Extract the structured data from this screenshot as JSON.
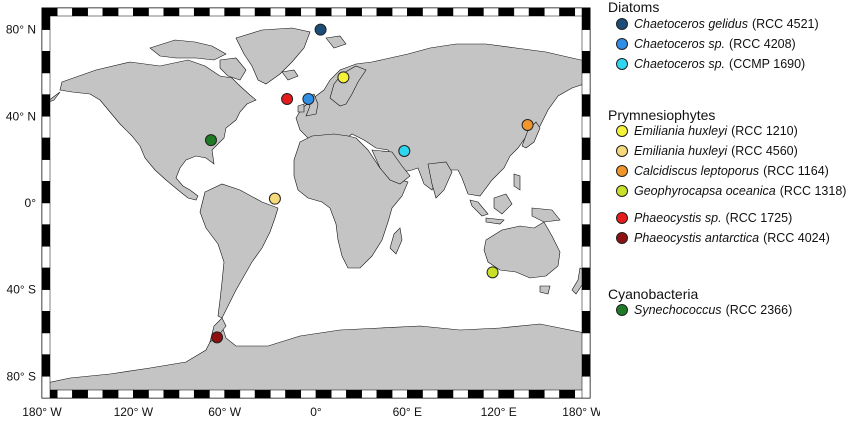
{
  "map": {
    "lon_min": -180,
    "lon_max": 180,
    "lat_min": -90,
    "lat_max": 90,
    "x_ticks": [
      {
        "lon": -180,
        "label": "180° W"
      },
      {
        "lon": -120,
        "label": "120° W"
      },
      {
        "lon": -60,
        "label": "60° W"
      },
      {
        "lon": 0,
        "label": "0°"
      },
      {
        "lon": 60,
        "label": "60° E"
      },
      {
        "lon": 120,
        "label": "120° E"
      },
      {
        "lon": 180,
        "label": "180° W"
      }
    ],
    "y_ticks": [
      {
        "lat": 80,
        "label": "80° N"
      },
      {
        "lat": 40,
        "label": "40° N"
      },
      {
        "lat": 0,
        "label": "0°"
      },
      {
        "lat": -40,
        "label": "40° S"
      },
      {
        "lat": -80,
        "label": "80° S"
      }
    ],
    "ocean_color": "#ffffff",
    "land_color": "#c4c4c4",
    "coast_color": "#111111"
  },
  "legend": {
    "groups": [
      {
        "title": "Diatoms",
        "items": [
          {
            "species": "Chaetoceros gelidus",
            "strain": "(RCC 4521)",
            "color": "#1b4d78"
          },
          {
            "species": "Chaetoceros sp.",
            "strain": "(RCC 4208)",
            "color": "#2f8ee6"
          },
          {
            "species": "Chaetoceros sp.",
            "strain": "(CCMP 1690)",
            "color": "#2fd6ef"
          }
        ]
      },
      {
        "title": "Prymnesiophytes",
        "items": [
          {
            "species": "Emiliania huxleyi",
            "strain": "(RCC 1210)",
            "color": "#f5f23a"
          },
          {
            "species": "Emiliania huxleyi",
            "strain": "(RCC 4560)",
            "color": "#f5d97a"
          },
          {
            "species": "Calcidiscus leptoporus",
            "strain": "(RCC 1164)",
            "color": "#f0962a"
          },
          {
            "species": "Geophyrocapsa oceanica",
            "strain": "(RCC 1318)",
            "color": "#c8e02a"
          },
          {
            "species": "Phaeocystis sp.",
            "strain": "(RCC 1725)",
            "color": "#e61c1c"
          },
          {
            "species": "Phaeocystis antarctica",
            "strain": "(RCC 4024)",
            "color": "#8e1010"
          }
        ]
      },
      {
        "title": "Cyanobacteria",
        "items": [
          {
            "species": "Synechococcus",
            "strain": "(RCC 2366)",
            "color": "#1e7a25"
          }
        ]
      }
    ]
  },
  "sites": [
    {
      "name": "Chaetoceros gelidus (RCC 4521)",
      "lon": 3,
      "lat": 80,
      "color": "#1b4d78"
    },
    {
      "name": "Chaetoceros sp. (RCC 4208)",
      "lon": -5,
      "lat": 48,
      "color": "#2f8ee6"
    },
    {
      "name": "Chaetoceros sp. (CCMP 1690)",
      "lon": 58,
      "lat": 24,
      "color": "#2fd6ef"
    },
    {
      "name": "Emiliania huxleyi (RCC 1210)",
      "lon": 18,
      "lat": 58,
      "color": "#f5f23a"
    },
    {
      "name": "Emiliania huxleyi (RCC 4560)",
      "lon": -27,
      "lat": 2,
      "color": "#f5d97a"
    },
    {
      "name": "Calcidiscus leptoporus (RCC 1164)",
      "lon": 139,
      "lat": 36,
      "color": "#f0962a"
    },
    {
      "name": "Geophyrocapsa oceanica (RCC 1318)",
      "lon": 116,
      "lat": -32,
      "color": "#c8e02a"
    },
    {
      "name": "Phaeocystis sp. (RCC 1725)",
      "lon": -19,
      "lat": 48,
      "color": "#e61c1c"
    },
    {
      "name": "Phaeocystis antarctica (RCC 4024)",
      "lon": -65,
      "lat": -62,
      "color": "#8e1010"
    },
    {
      "name": "Synechococcus (RCC 2366)",
      "lon": -69,
      "lat": 29,
      "color": "#1e7a25"
    }
  ]
}
